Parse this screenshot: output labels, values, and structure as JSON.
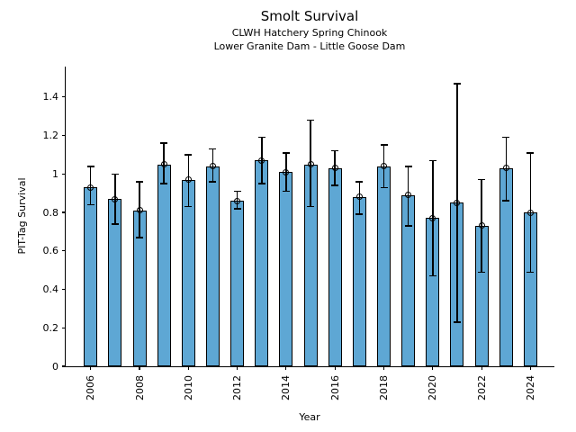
{
  "title": "Smolt Survival",
  "subtitle_line1": "CLWH Hatchery Spring Chinook",
  "subtitle_line2": "Lower Granite Dam - Little Goose Dam",
  "colors": {
    "bar_fill": "#5EA7D4",
    "bar_edge": "#000000",
    "error_bar": "#000000",
    "text": "#000000",
    "background": "#ffffff"
  },
  "chart_data": {
    "type": "bar",
    "title": "Smolt Survival",
    "subtitle": [
      "CLWH Hatchery Spring Chinook",
      "Lower Granite Dam - Little Goose Dam"
    ],
    "xlabel": "Year",
    "ylabel": "PIT-Tag Survival",
    "ylim": [
      0,
      1.56
    ],
    "grid": false,
    "legend": false,
    "error_bars": true,
    "marker_style": "open-circle",
    "categories": [
      2006,
      2007,
      2008,
      2009,
      2010,
      2011,
      2012,
      2013,
      2014,
      2015,
      2016,
      2017,
      2018,
      2019,
      2020,
      2021,
      2022,
      2023,
      2024
    ],
    "values": [
      0.93,
      0.87,
      0.81,
      1.05,
      0.97,
      1.04,
      0.86,
      1.07,
      1.01,
      1.05,
      1.03,
      0.88,
      1.04,
      0.89,
      0.77,
      0.85,
      0.73,
      1.03,
      0.8
    ],
    "err_low": [
      0.84,
      0.74,
      0.67,
      0.95,
      0.83,
      0.96,
      0.82,
      0.95,
      0.91,
      0.83,
      0.94,
      0.79,
      0.93,
      0.73,
      0.47,
      0.23,
      0.49,
      0.86,
      0.49
    ],
    "err_high": [
      1.04,
      1.0,
      0.96,
      1.16,
      1.1,
      1.13,
      0.91,
      1.19,
      1.11,
      1.28,
      1.12,
      0.96,
      1.15,
      1.04,
      1.07,
      1.47,
      0.97,
      1.19,
      1.11
    ],
    "y_ticks": [
      0,
      0.2,
      0.4,
      0.6,
      0.8,
      1,
      1.2,
      1.4
    ],
    "y_tick_labels": [
      "0",
      "0.2",
      "0.4",
      "0.6",
      "0.8",
      "1",
      "1.2",
      "1.4"
    ],
    "x_ticks": [
      2006,
      2008,
      2010,
      2012,
      2014,
      2016,
      2018,
      2020,
      2022,
      2024
    ],
    "x_tick_labels": [
      "2006",
      "2008",
      "2010",
      "2012",
      "2014",
      "2016",
      "2018",
      "2020",
      "2022",
      "2024"
    ]
  }
}
